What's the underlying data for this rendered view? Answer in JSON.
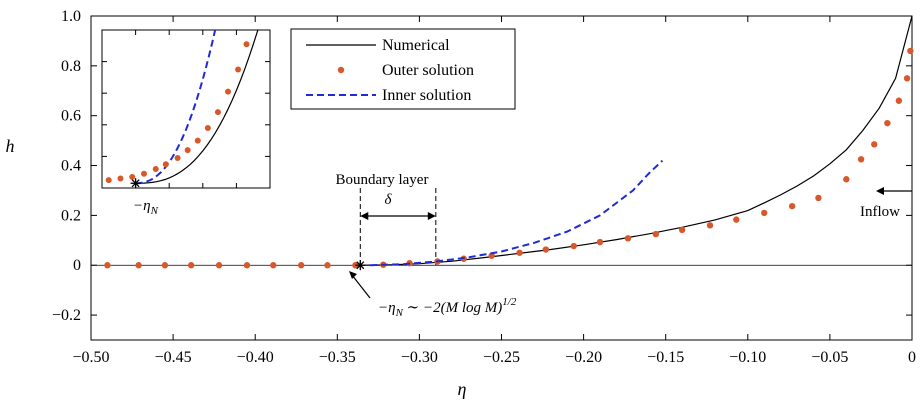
{
  "chart_data": {
    "type": "line",
    "xlabel": "η",
    "ylabel": "h",
    "xlim": [
      -0.5,
      0
    ],
    "ylim": [
      -0.3,
      1.0
    ],
    "grid": false,
    "legend_placement": "top-center",
    "x_ticks": [
      {
        "value": -0.5,
        "label": "−0.50"
      },
      {
        "value": -0.45,
        "label": "−0.45"
      },
      {
        "value": -0.4,
        "label": "−0.40"
      },
      {
        "value": -0.35,
        "label": "−0.35"
      },
      {
        "value": -0.3,
        "label": "−0.30"
      },
      {
        "value": -0.25,
        "label": "−0.25"
      },
      {
        "value": -0.2,
        "label": "−0.20"
      },
      {
        "value": -0.15,
        "label": "−0.15"
      },
      {
        "value": -0.1,
        "label": "−0.10"
      },
      {
        "value": -0.05,
        "label": "−0.05"
      },
      {
        "value": 0,
        "label": "0"
      }
    ],
    "y_ticks": [
      {
        "value": -0.2,
        "label": "−0.2"
      },
      {
        "value": 0,
        "label": "0"
      },
      {
        "value": 0.2,
        "label": "0.2"
      },
      {
        "value": 0.4,
        "label": "0.4"
      },
      {
        "value": 0.6,
        "label": "0.6"
      },
      {
        "value": 0.8,
        "label": "0.8"
      },
      {
        "value": 1.0,
        "label": "1.0"
      }
    ],
    "series": [
      {
        "name": "Numerical",
        "style": "solid-line",
        "color": "#000000",
        "x": [
          -0.336,
          -0.32,
          -0.3,
          -0.28,
          -0.26,
          -0.24,
          -0.22,
          -0.2,
          -0.18,
          -0.16,
          -0.14,
          -0.12,
          -0.1,
          -0.09,
          -0.08,
          -0.07,
          -0.06,
          -0.05,
          -0.04,
          -0.03,
          -0.02,
          -0.01,
          0.0
        ],
        "y": [
          0.0,
          0.001,
          0.006,
          0.016,
          0.031,
          0.047,
          0.063,
          0.082,
          0.103,
          0.126,
          0.152,
          0.182,
          0.219,
          0.25,
          0.282,
          0.318,
          0.358,
          0.407,
          0.463,
          0.54,
          0.63,
          0.75,
          1.0
        ]
      },
      {
        "name": "Outer solution",
        "style": "dots",
        "color": "#d9582b",
        "x": [
          -0.49,
          -0.471,
          -0.455,
          -0.439,
          -0.422,
          -0.405,
          -0.389,
          -0.372,
          -0.356,
          -0.339,
          -0.322,
          -0.306,
          -0.289,
          -0.273,
          -0.256,
          -0.239,
          -0.223,
          -0.206,
          -0.19,
          -0.173,
          -0.156,
          -0.14,
          -0.123,
          -0.107,
          -0.09,
          -0.073,
          -0.057,
          -0.04,
          -0.031,
          -0.023,
          -0.015,
          -0.008,
          -0.003,
          -0.001
        ],
        "y": [
          0.0,
          0.0,
          0.0,
          0.0,
          0.0,
          0.0,
          0.0,
          0.0,
          0.0,
          0.0,
          0.002,
          0.008,
          0.015,
          0.026,
          0.038,
          0.05,
          0.063,
          0.077,
          0.093,
          0.108,
          0.125,
          0.142,
          0.16,
          0.183,
          0.21,
          0.237,
          0.27,
          0.345,
          0.425,
          0.485,
          0.57,
          0.66,
          0.75,
          0.86
        ]
      },
      {
        "name": "Inner solution",
        "style": "dashed-line",
        "color": "#1f2bd6",
        "x": [
          -0.33,
          -0.31,
          -0.29,
          -0.27,
          -0.25,
          -0.23,
          -0.21,
          -0.19,
          -0.17,
          -0.16,
          -0.152
        ],
        "y": [
          0.0,
          0.004,
          0.015,
          0.032,
          0.055,
          0.09,
          0.135,
          0.2,
          0.3,
          0.37,
          0.42
        ]
      }
    ],
    "annotations": [
      {
        "text": "Boundary layer",
        "x": -0.31,
        "y": 0.33
      },
      {
        "text": "δ",
        "x": -0.31,
        "y": 0.26
      },
      {
        "text": "Inflow",
        "x": -0.015,
        "y": 0.19
      },
      {
        "text": "−η",
        "sub": "N",
        "rest": " ∼ −2(M log M)",
        "sup": "1/2",
        "x": -0.32,
        "y": -0.2
      },
      {
        "text": "−η",
        "sub": "N",
        "x": -0.47,
        "y": 0.3
      }
    ],
    "inset": {
      "curve_label": "−ηN"
    }
  }
}
